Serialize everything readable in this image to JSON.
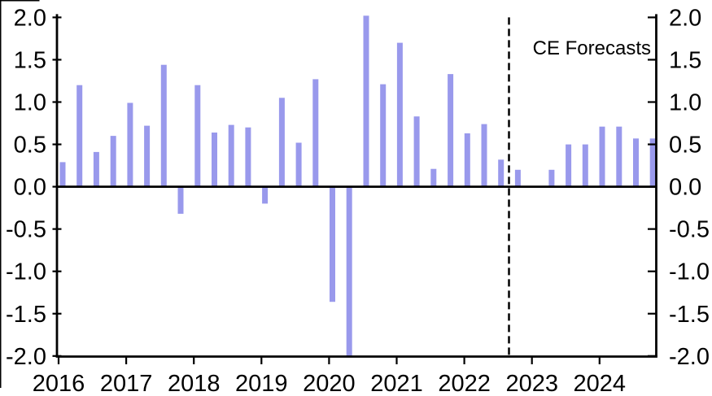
{
  "chart_data": {
    "type": "bar",
    "title": "",
    "xlabel": "",
    "ylabel": "",
    "annotation": "CE Forecasts",
    "legend": "none",
    "grid": "none",
    "ylim": [
      -2.0,
      2.0
    ],
    "y_tick_step": 0.5,
    "y_tick_labels": [
      "2.0",
      "1.5",
      "1.0",
      "0.5",
      "0.0",
      "-0.5",
      "-1.0",
      "-1.5",
      "-2.0"
    ],
    "y_axis_sides": [
      "left",
      "right"
    ],
    "x_tick_labels": [
      "2016",
      "2017",
      "2018",
      "2019",
      "2020",
      "2021",
      "2022",
      "2023",
      "2024"
    ],
    "categories": [
      "2016 Q1",
      "2016 Q2",
      "2016 Q3",
      "2016 Q4",
      "2017 Q1",
      "2017 Q2",
      "2017 Q3",
      "2017 Q4",
      "2018 Q1",
      "2018 Q2",
      "2018 Q3",
      "2018 Q4",
      "2019 Q1",
      "2019 Q2",
      "2019 Q3",
      "2019 Q4",
      "2020 Q1",
      "2020 Q2",
      "2020 Q3",
      "2020 Q4",
      "2021 Q1",
      "2021 Q2",
      "2021 Q3",
      "2021 Q4",
      "2022 Q1",
      "2022 Q2",
      "2022 Q3",
      "2022 Q4",
      "2023 Q1",
      "2023 Q2",
      "2023 Q3",
      "2023 Q4",
      "2024 Q1",
      "2024 Q2",
      "2024 Q3",
      "2024 Q4"
    ],
    "values": [
      0.29,
      1.2,
      0.41,
      0.6,
      0.99,
      0.72,
      1.44,
      -0.32,
      1.2,
      0.64,
      0.73,
      0.7,
      -0.2,
      1.05,
      0.52,
      1.27,
      -1.36,
      -2.0,
      2.02,
      1.21,
      1.7,
      0.83,
      0.21,
      1.33,
      0.63,
      0.74,
      0.32,
      0.2,
      0.0,
      0.2,
      0.5,
      0.5,
      0.71,
      0.71,
      0.57,
      0.57
    ],
    "clipped_bars": [
      "2020 Q2"
    ],
    "forecast_divider_after": "2022 Q3",
    "forecast_divider_style": "black dashed vertical line",
    "bar_color": "#9999EC",
    "axis_color": "#000000"
  }
}
